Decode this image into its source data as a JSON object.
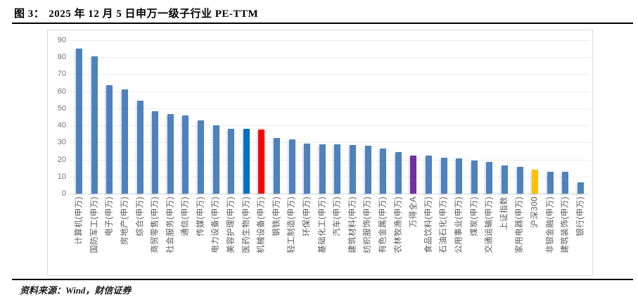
{
  "figure": {
    "label": "图 3：",
    "title": "2025 年 12 月 5 日申万一级子行业 PE-TTM",
    "source": "资料来源：Wind，财信证券"
  },
  "colors": {
    "bar_default": "#4F81BD",
    "highlight_blue": "#0070C0",
    "highlight_red": "#FF0000",
    "highlight_purple": "#7030A0",
    "highlight_yellow": "#FFC000",
    "gridline": "#ebebeb",
    "tick_text": "#737373",
    "label_text": "#595959"
  },
  "chart_data": {
    "type": "bar",
    "title": "2025 年 12 月 5 日申万一级子行业 PE-TTM",
    "xlabel": "",
    "ylabel": "",
    "ylim": [
      0,
      90
    ],
    "ytick_step": 10,
    "grid": true,
    "legend": false,
    "bar_color": "#4F81BD",
    "highlight_colors": {
      "11": "#0070C0",
      "12": "#FF0000",
      "22": "#7030A0",
      "30": "#FFC000"
    },
    "categories": [
      "计算机(申万)",
      "国防军工(申万)",
      "电子(申万)",
      "房地产(申万)",
      "综合(申万)",
      "商贸零售(申万)",
      "社会服务(申万)",
      "通信(申万)",
      "传媒(申万)",
      "电力设备(申万)",
      "美容护理(申万)",
      "医药生物(申万)",
      "机械设备(申万)",
      "钢铁(申万)",
      "轻工制造(申万)",
      "环保(申万)",
      "基础化工(申万)",
      "汽车(申万)",
      "建筑材料(申万)",
      "纺织服饰(申万)",
      "有色金属(申万)",
      "农林牧渔(申万)",
      "万得全A",
      "食品饮料(申万)",
      "石油石化(申万)",
      "公用事业(申万)",
      "煤炭(申万)",
      "交通运输(申万)",
      "上证指数",
      "家用电器(申万)",
      "沪深300",
      "非银金融(申万)",
      "建筑装饰(申万)",
      "银行(申万)"
    ],
    "values": [
      85,
      80.5,
      63.5,
      61,
      54.5,
      48.5,
      46.5,
      46,
      43,
      40,
      38,
      38,
      37.5,
      32.5,
      32,
      29.5,
      29,
      29,
      28.5,
      28,
      26.5,
      24.5,
      22.5,
      22.3,
      21,
      20.5,
      19.5,
      18.5,
      16.5,
      15.5,
      14,
      13,
      13,
      6.5
    ]
  }
}
